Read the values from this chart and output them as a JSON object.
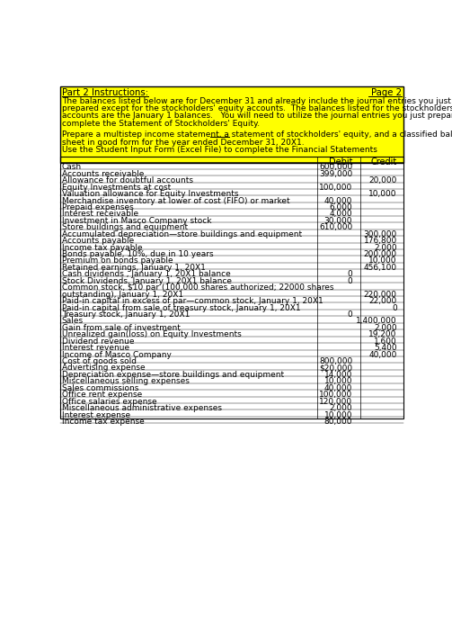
{
  "title_left": "Part 2 Instructions:",
  "title_right": "Page 2",
  "instructions": [
    "The balances listed below are for December 31 and already include the journal entries you just",
    "prepared except for the stockholders' equity accounts.  The balances listed for the stockholders' equity",
    "accounts are the January 1 balances.   You will need to utilize the journal entries you just prepared to",
    "complete the Statement of Stockholders' Equity.",
    "",
    "Prepare a multistep income statement, a statement of stockholders' equity, and a classified balance",
    "sheet in good form for the year ended December 31, 20X1.",
    "Use the Student Input Form (Excel File) to complete the Financial Statements"
  ],
  "rows": [
    {
      "label": "Cash",
      "debit": "600,000",
      "credit": ""
    },
    {
      "label": "Accounts receivable",
      "debit": "399,000",
      "credit": ""
    },
    {
      "label": "Allowance for doubtful accounts",
      "debit": "",
      "credit": "20,000"
    },
    {
      "label": "Equity Investments at cost",
      "debit": "100,000",
      "credit": ""
    },
    {
      "label": "Valuation allowance for Equity Investments",
      "debit": "",
      "credit": "10,000"
    },
    {
      "label": "Merchandise inventory at lower of cost (FIFO) or market",
      "debit": "40,000",
      "credit": ""
    },
    {
      "label": "Prepaid expenses",
      "debit": "6,000",
      "credit": ""
    },
    {
      "label": "Interest receivable",
      "debit": "4,000",
      "credit": ""
    },
    {
      "label": "Investment in Masco Company stock",
      "debit": "30,000",
      "credit": ""
    },
    {
      "label": "Store buildings and equipment",
      "debit": "610,000",
      "credit": ""
    },
    {
      "label": "Accumulated depreciation—store buildings and equipment",
      "debit": "",
      "credit": "300,000"
    },
    {
      "label": "Accounts payable",
      "debit": "",
      "credit": "176,800"
    },
    {
      "label": "Income tax payable",
      "debit": "",
      "credit": "2,000"
    },
    {
      "label": "Bonds payable, 10%, due in 10 years",
      "debit": "",
      "credit": "200,000"
    },
    {
      "label": "Premium on bonds payable",
      "debit": "",
      "credit": "10,000"
    },
    {
      "label": "Retained earnings, January 1, 20X1",
      "debit": "",
      "credit": "456,100"
    },
    {
      "label": "Cash dividends , January 1, 20X1 balance",
      "debit": "0",
      "credit": ""
    },
    {
      "label": "Stock Dividends, January 1, 20X1 balance",
      "debit": "0",
      "credit": ""
    },
    {
      "label": "Common stock, $10 par (100,000 shares authorized; 22000 shares",
      "debit": "",
      "credit": "",
      "multiline_first": true
    },
    {
      "label": "outstanding), January 1, 20X1",
      "debit": "",
      "credit": "220,000",
      "multiline_second": true
    },
    {
      "label": "Paid-in capital in excess of par—common stock, January 1, 20X1",
      "debit": "",
      "credit": "22,000"
    },
    {
      "label": "Paid-in capital from sale of treasury stock, January 1, 20X1",
      "debit": "",
      "credit": "0"
    },
    {
      "label": "Treasury stock, January 1, 20X1",
      "debit": "0",
      "credit": ""
    },
    {
      "label": "Sales",
      "debit": "",
      "credit": "1,400,000"
    },
    {
      "label": "Gain from sale of investment",
      "debit": "",
      "credit": "2,000"
    },
    {
      "label": "Unrealized gain(loss) on Equity Investments",
      "debit": "",
      "credit": "19,200"
    },
    {
      "label": "Dividend revenue",
      "debit": "",
      "credit": "1,600"
    },
    {
      "label": "Interest revenue",
      "debit": "",
      "credit": "5,400"
    },
    {
      "label": "Income of Masco Company",
      "debit": "",
      "credit": "40,000"
    },
    {
      "label": "Cost of goods sold",
      "debit": "800,000",
      "credit": ""
    },
    {
      "label": "Advertising expense",
      "debit": "$20,000",
      "credit": ""
    },
    {
      "label": "Depreciation expense—store buildings and equipment",
      "debit": "14,000",
      "credit": ""
    },
    {
      "label": "Miscellaneous selling expenses",
      "debit": "10,000",
      "credit": ""
    },
    {
      "label": "Sales commissions",
      "debit": "40,000",
      "credit": ""
    },
    {
      "label": "Office rent expense",
      "debit": "100,000",
      "credit": ""
    },
    {
      "label": "Office salaries expense",
      "debit": "120,000",
      "credit": ""
    },
    {
      "label": "Miscellaneous administrative expenses",
      "debit": "2,000",
      "credit": ""
    },
    {
      "label": "Interest expense",
      "debit": "10,000",
      "credit": ""
    },
    {
      "label": "Income tax expense",
      "debit": "80,000",
      "credit": ""
    }
  ],
  "bg_color": "#ffff00",
  "font_size": 7.0
}
